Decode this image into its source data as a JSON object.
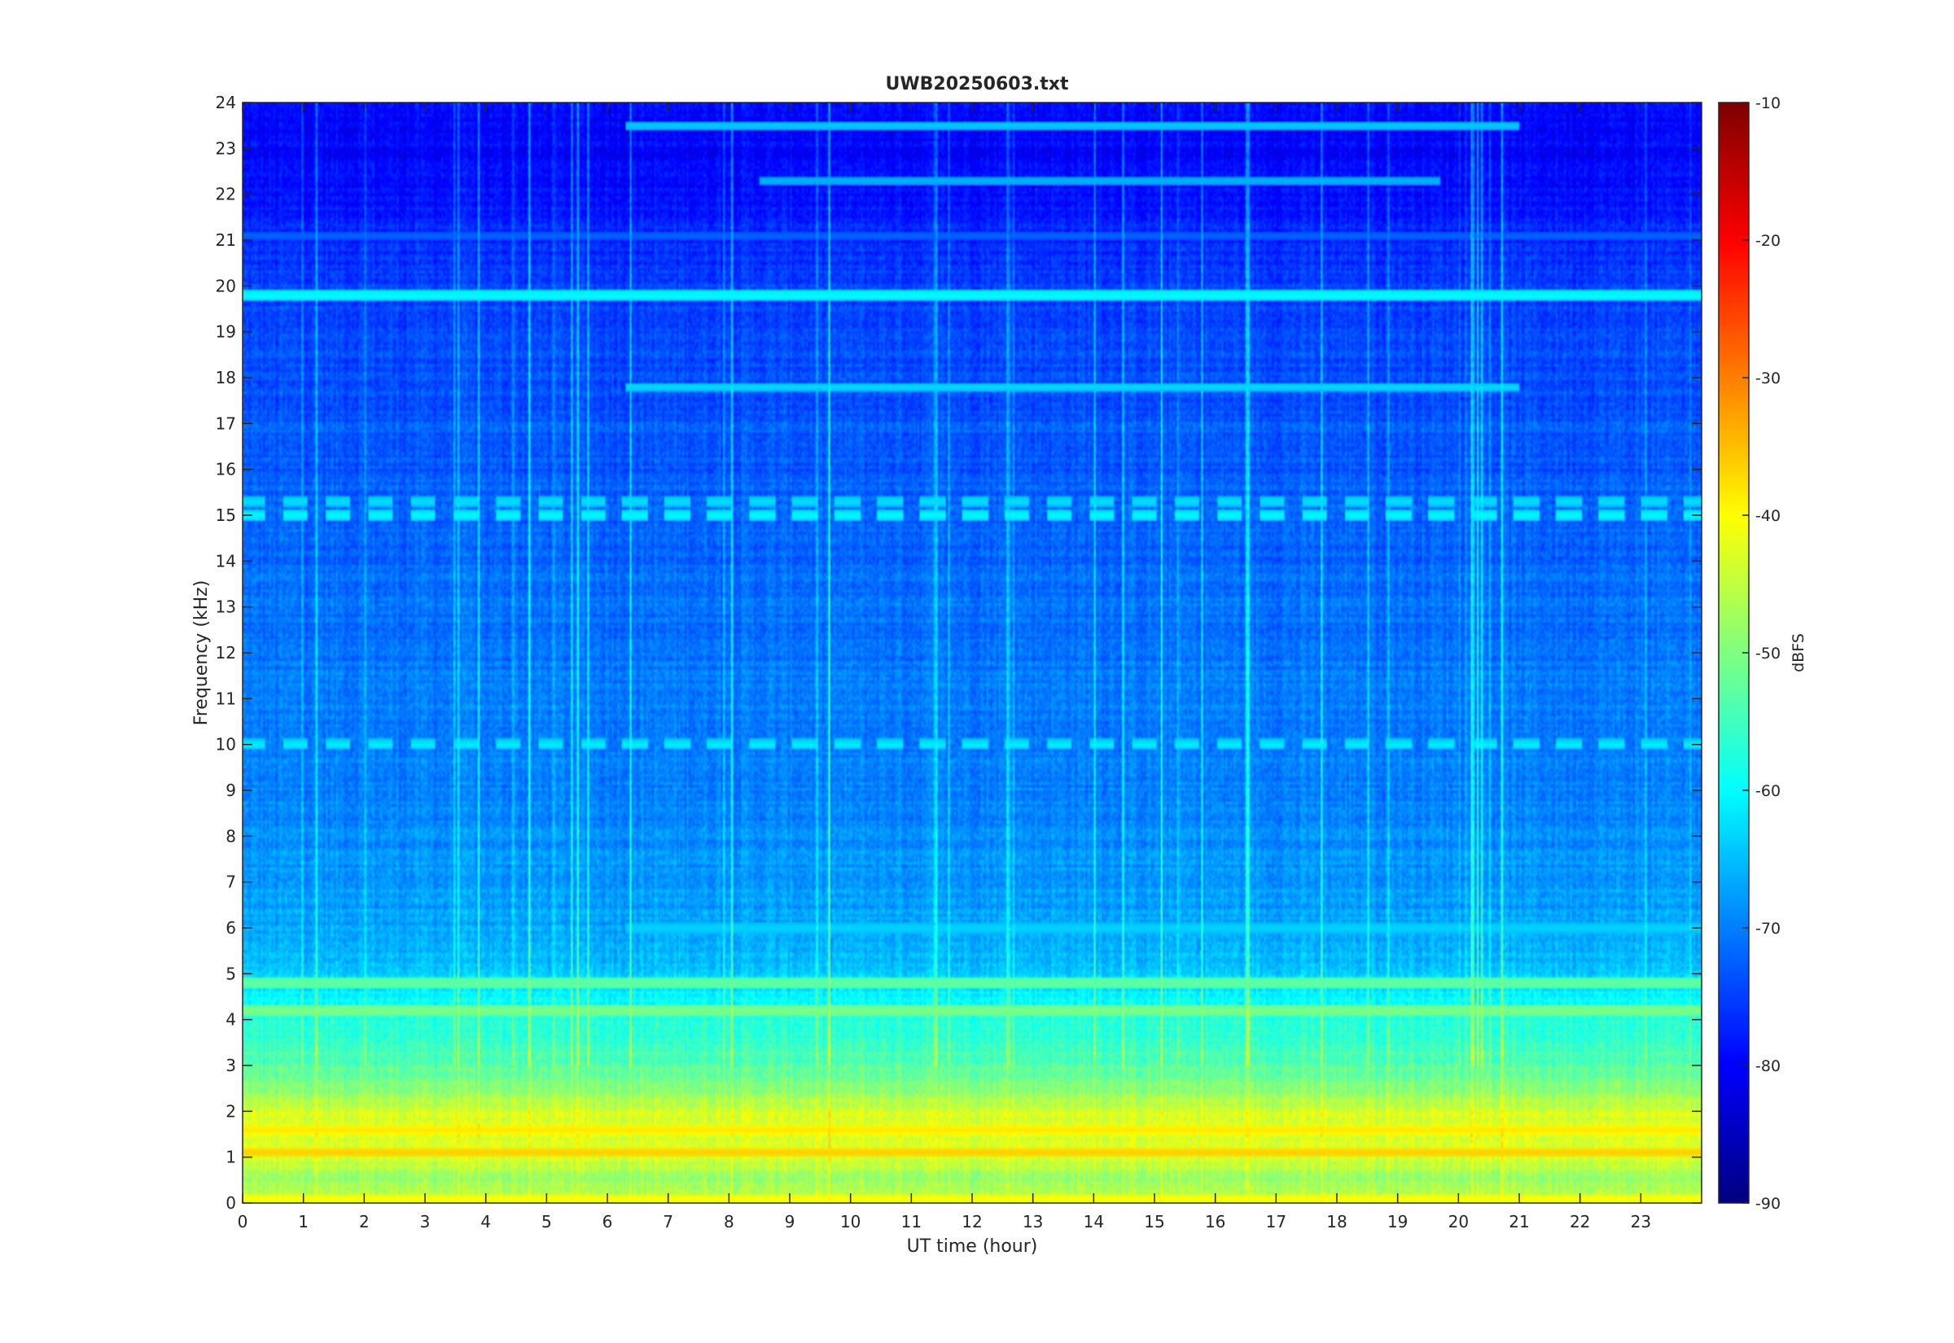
{
  "chart_data": {
    "type": "heatmap",
    "title": "UWB20250603.txt",
    "xlabel": "UT time (hour)",
    "ylabel": "Frequency (kHz)",
    "xlim": [
      0,
      24
    ],
    "ylim": [
      0,
      24
    ],
    "x_ticks": [
      0,
      1,
      2,
      3,
      4,
      5,
      6,
      7,
      8,
      9,
      10,
      11,
      12,
      13,
      14,
      15,
      16,
      17,
      18,
      19,
      20,
      21,
      22,
      23
    ],
    "y_ticks": [
      0,
      1,
      2,
      3,
      4,
      5,
      6,
      7,
      8,
      9,
      10,
      11,
      12,
      13,
      14,
      15,
      16,
      17,
      18,
      19,
      20,
      21,
      22,
      23,
      24
    ],
    "colorbar": {
      "label": "dBFS",
      "limits": [
        -90,
        -10
      ],
      "ticks": [
        -90,
        -80,
        -70,
        -60,
        -50,
        -40,
        -30,
        -20,
        -10
      ],
      "colormap": "jet"
    },
    "background_profile": {
      "frequency_khz": [
        0,
        0.5,
        1,
        1.5,
        2,
        2.5,
        3,
        3.5,
        4,
        4.5,
        5,
        6,
        7,
        8,
        9,
        10,
        11,
        12,
        13,
        14,
        15,
        16,
        17,
        18,
        19,
        20,
        21,
        22,
        23,
        24
      ],
      "level_dbfs": [
        -43,
        -48,
        -44,
        -42,
        -43,
        -50,
        -53,
        -56,
        -58,
        -60,
        -64,
        -67,
        -68,
        -69,
        -70,
        -70,
        -70,
        -71,
        -71,
        -72,
        -72,
        -73,
        -73,
        -74,
        -74,
        -75,
        -77,
        -79,
        -80,
        -80
      ]
    },
    "persistent_lines": [
      {
        "frequency_khz": 19.8,
        "start_hour": 0,
        "end_hour": 24,
        "level_dbfs": -60
      },
      {
        "frequency_khz": 23.5,
        "start_hour": 6.3,
        "end_hour": 21,
        "level_dbfs": -64
      },
      {
        "frequency_khz": 22.3,
        "start_hour": 8.5,
        "end_hour": 19.7,
        "level_dbfs": -66
      },
      {
        "frequency_khz": 17.8,
        "start_hour": 6.3,
        "end_hour": 21,
        "level_dbfs": -63
      },
      {
        "frequency_khz": 6.0,
        "start_hour": 6.3,
        "end_hour": 24,
        "level_dbfs": -63
      },
      {
        "frequency_khz": 21.1,
        "start_hour": 0,
        "end_hour": 24,
        "level_dbfs": -72
      },
      {
        "frequency_khz": 4.2,
        "start_hour": 0,
        "end_hour": 24,
        "level_dbfs": -50
      },
      {
        "frequency_khz": 4.8,
        "start_hour": 0,
        "end_hour": 24,
        "level_dbfs": -52
      },
      {
        "frequency_khz": 1.1,
        "start_hour": 0,
        "end_hour": 24,
        "level_dbfs": -36
      },
      {
        "frequency_khz": 1.6,
        "start_hour": 0,
        "end_hour": 24,
        "level_dbfs": -38
      },
      {
        "frequency_khz": 0.1,
        "start_hour": 0,
        "end_hour": 24,
        "level_dbfs": -40
      }
    ],
    "bands": [
      {
        "frequency_khz": 15.0,
        "start_hour": 0,
        "end_hour": 24,
        "level_dbfs": -60
      },
      {
        "frequency_khz": 15.3,
        "start_hour": 0,
        "end_hour": 24,
        "level_dbfs": -62
      },
      {
        "frequency_khz": 10.0,
        "start_hour": 0,
        "end_hour": 24,
        "level_dbfs": -61
      }
    ]
  }
}
